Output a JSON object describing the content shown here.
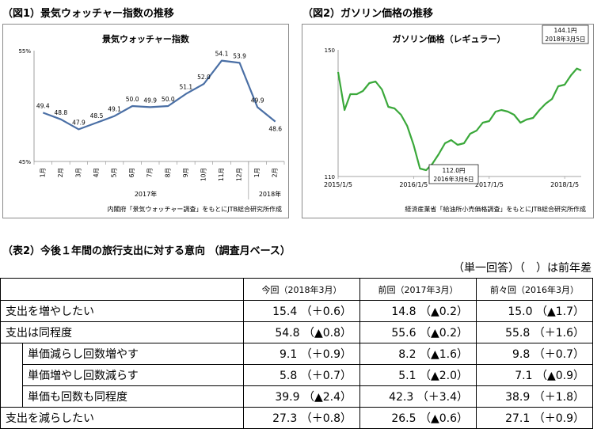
{
  "chart1": {
    "heading": "（図1）景気ウォッチャー指数の推移",
    "caption": "内閣府「景気ウォッチャー調査」をもとにJTB総合研究所作成",
    "year1": "2017年",
    "year2": "2018年"
  },
  "chart2": {
    "heading": "（図2）ガソリン価格の推移",
    "caption": "経済産業省「給油所小売価格調査」をもとにJTB総合研究所作成",
    "ann_low": [
      "112.0円",
      "2016年3月6日"
    ],
    "ann_high": [
      "144.1円",
      "2018年3月5日"
    ]
  },
  "chart_data": [
    {
      "type": "line",
      "title": "景気ウォッチャー指数",
      "categories": [
        "1月",
        "2月",
        "3月",
        "4月",
        "5月",
        "6月",
        "7月",
        "8月",
        "9月",
        "10月",
        "11月",
        "12月",
        "1月",
        "2月"
      ],
      "values": [
        49.4,
        48.8,
        47.9,
        48.5,
        49.1,
        50.0,
        49.9,
        50.0,
        51.1,
        52.0,
        54.1,
        53.9,
        49.9,
        48.6
      ],
      "data_labels": [
        "49.4",
        "48.8",
        "47.9",
        "48.5",
        "49.1",
        "50.0",
        "49.9",
        "50.0",
        "51.1",
        "52.0",
        "54.1",
        "53.9",
        "49.9",
        "48.6"
      ],
      "ylim": [
        45,
        55
      ],
      "yticks": [
        "45%",
        "55%"
      ],
      "color": "#4a6fa5",
      "grid": false
    },
    {
      "type": "line",
      "title": "ガソリン価格（レギュラー）",
      "x": [
        "2015/1/5",
        "2015/2/5",
        "2015/3/5",
        "2015/4/5",
        "2015/5/5",
        "2015/6/5",
        "2015/7/5",
        "2015/8/5",
        "2015/9/5",
        "2015/10/5",
        "2015/11/5",
        "2015/12/5",
        "2016/1/5",
        "2016/2/5",
        "2016/3/6",
        "2016/4/5",
        "2016/5/5",
        "2016/6/5",
        "2016/7/5",
        "2016/8/5",
        "2016/9/5",
        "2016/10/5",
        "2016/11/5",
        "2016/12/5",
        "2017/1/5",
        "2017/2/5",
        "2017/3/5",
        "2017/4/5",
        "2017/5/5",
        "2017/6/5",
        "2017/7/5",
        "2017/8/5",
        "2017/9/5",
        "2017/10/5",
        "2017/11/5",
        "2017/12/5",
        "2018/1/5",
        "2018/2/5",
        "2018/3/5",
        "2018/3/26"
      ],
      "values": [
        143.0,
        131.0,
        136.0,
        136.0,
        137.0,
        139.5,
        140.0,
        137.5,
        132.0,
        131.5,
        129.5,
        126.0,
        120.0,
        112.5,
        112.0,
        114.0,
        117.0,
        120.5,
        121.5,
        120.0,
        120.5,
        123.5,
        124.5,
        127.0,
        127.5,
        130.5,
        131.0,
        130.5,
        129.5,
        127.0,
        128.0,
        128.5,
        131.0,
        133.0,
        134.5,
        138.5,
        139.0,
        142.0,
        144.1,
        143.5
      ],
      "xticks": [
        "2015/1/5",
        "2016/1/5",
        "2017/1/5",
        "2018/1/5"
      ],
      "ylim": [
        110,
        150
      ],
      "yticks": [
        "110",
        "150"
      ],
      "color": "#3aa83a",
      "grid": false
    }
  ],
  "table": {
    "heading": "（表2）今後１年間の旅行支出に対する意向 （調査月ベース）",
    "note": "（単一回答）（　）は前年差",
    "columns": [
      "今回（2018年3月）",
      "前回（2017年3月）",
      "前々回（2016年3月）"
    ],
    "rows": [
      {
        "label": "支出を増やしたい",
        "values": [
          "15.4 （＋0.6）",
          "14.8 （▲0.2）",
          "15.0 （▲1.7）"
        ]
      },
      {
        "label": "支出は同程度",
        "values": [
          "54.8 （▲0.8）",
          "55.6 （▲0.2）",
          "55.8 （＋1.6）"
        ]
      },
      {
        "label": "単価減らし回数増やす",
        "values": [
          "9.1 （＋0.9）",
          "8.2 （▲1.6）",
          "9.8 （＋0.7）"
        ]
      },
      {
        "label": "単価増やし回数減らす",
        "values": [
          "5.8 （＋0.7）",
          "5.1 （▲2.0）",
          "7.1 （▲0.9）"
        ]
      },
      {
        "label": "単価も回数も同程度",
        "values": [
          "39.9 （▲2.4）",
          "42.3 （＋3.4）",
          "38.9 （＋1.8）"
        ]
      },
      {
        "label": "支出を減らしたい",
        "values": [
          "27.3 （＋0.8）",
          "26.5 （▲0.6）",
          "27.1 （＋0.9）"
        ]
      }
    ]
  }
}
